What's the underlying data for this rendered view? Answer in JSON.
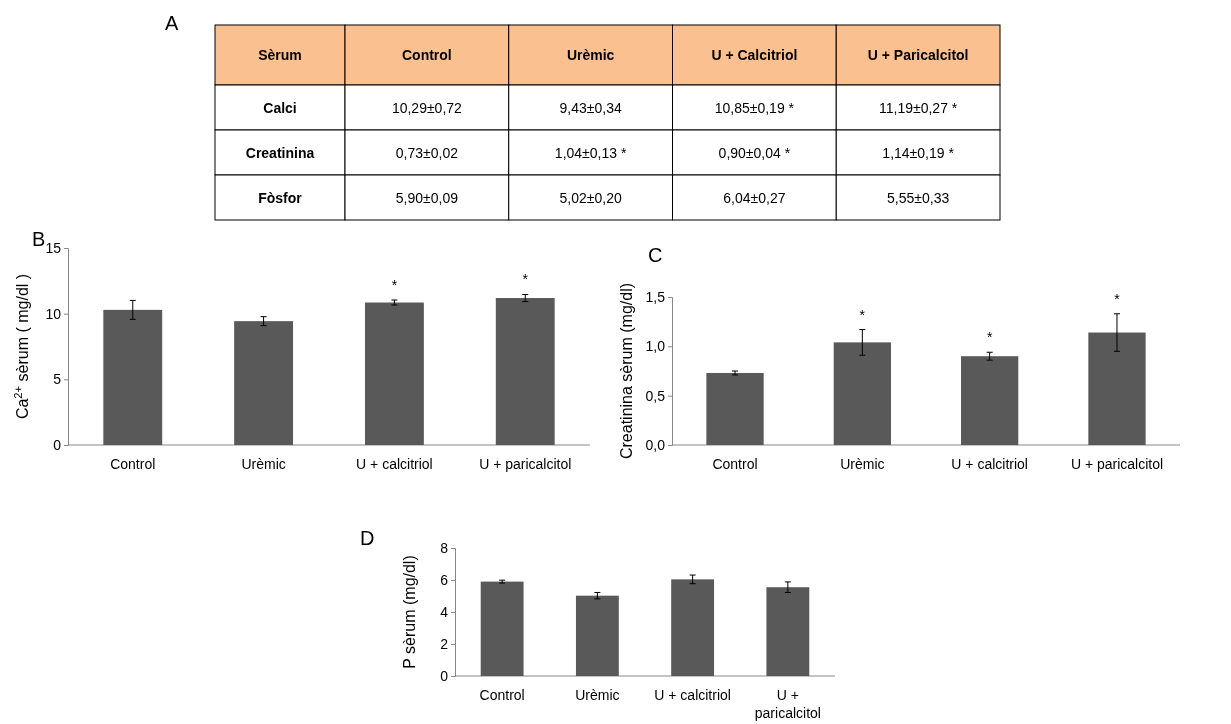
{
  "chart_data": [
    {
      "type": "other",
      "title": "A",
      "ylabel": "Sèrum",
      "color": "#fac090",
      "categories": [
        "Control",
        "Urèmic",
        "U + Calcitriol",
        "U + Paricalcitol"
      ],
      "y_categories": [
        "Calci",
        "Creatinina",
        "Fòsfor"
      ],
      "cells": [
        [
          "10,29±0,72",
          "9,43±0,34",
          "10,85±0,19 *",
          "11,19±0,27 *"
        ],
        [
          "0,73±0,02",
          "1,04±0,13 *",
          "0,90±0,04 *",
          "1,14±0,19 *"
        ],
        [
          "5,90±0,09",
          "5,02±0,20",
          "6,04±0,27",
          "5,55±0,33"
        ]
      ]
    },
    {
      "type": "bar",
      "title": "B",
      "ylabel": "Ca$^{2+}$ sèrum ( mg/dl )",
      "categories": [
        "Control",
        "Urèmic",
        "U + calcitriol",
        "U + paricalcitol"
      ],
      "values": [
        10.29,
        9.43,
        10.85,
        11.19
      ],
      "errors": [
        0.72,
        0.34,
        0.19,
        0.27
      ],
      "value_labels": [
        null,
        null,
        "*",
        "*"
      ],
      "color": "#595959",
      "ylim": [
        0,
        15
      ],
      "yticks": [
        0,
        5,
        10,
        15
      ]
    },
    {
      "type": "bar",
      "title": "C",
      "ylabel": "Creatinina sèrum (mg/dl)",
      "categories": [
        "Control",
        "Urèmic",
        "U + calcitriol",
        "U + paricalcitol"
      ],
      "values": [
        0.73,
        1.04,
        0.9,
        1.14
      ],
      "errors": [
        0.02,
        0.13,
        0.04,
        0.19
      ],
      "color": "#595959",
      "ylim": [
        0,
        1.5
      ],
      "yticks": [
        {
          "value": 0,
          "label": "0,0"
        },
        {
          "value": 0.5,
          "label": "0,5"
        },
        {
          "value": 1,
          "label": "1,0"
        },
        {
          "value": 1.5,
          "label": "1,5"
        }
      ],
      "value_labels": [
        null,
        "*",
        "*",
        "*"
      ]
    },
    {
      "type": "bar",
      "title": "D",
      "ylabel": "P sèrum (mg/dl)",
      "categories": [
        "Control",
        "Urèmic",
        "U + calcitriol",
        "U + paricalcitol"
      ],
      "values": [
        5.9,
        5.02,
        6.04,
        5.55
      ],
      "errors": [
        0.09,
        0.2,
        0.27,
        0.33
      ],
      "color": "#595959",
      "ylim": [
        0,
        8
      ],
      "yticks": [
        0,
        2,
        4,
        6,
        8
      ]
    }
  ]
}
